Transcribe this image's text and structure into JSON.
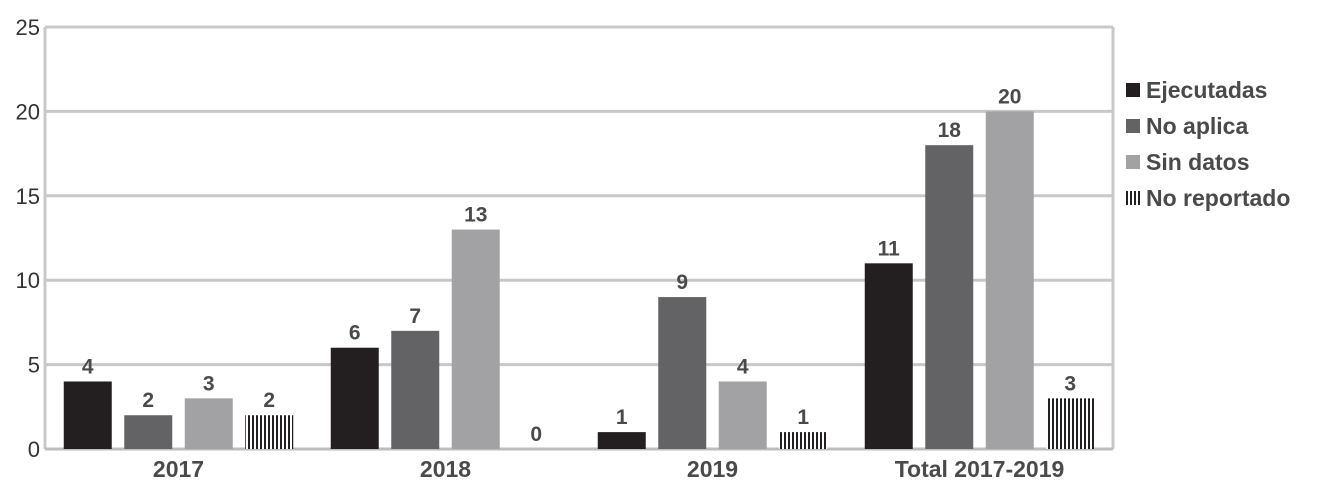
{
  "chart_data": {
    "type": "bar",
    "categories": [
      "2017",
      "2018",
      "2019",
      "Total 2017-2019"
    ],
    "series": [
      {
        "name": "Ejecutadas",
        "values": [
          4,
          6,
          1,
          11
        ],
        "color": "#231f20",
        "pattern": "solid"
      },
      {
        "name": "No aplica",
        "values": [
          2,
          7,
          9,
          18
        ],
        "color": "#636365",
        "pattern": "solid"
      },
      {
        "name": "Sin datos",
        "values": [
          3,
          13,
          4,
          20
        ],
        "color": "#a2a2a5",
        "pattern": "solid"
      },
      {
        "name": "No reportado",
        "values": [
          2,
          0,
          1,
          3
        ],
        "color": "#231f20",
        "pattern": "vertical-stripes"
      }
    ],
    "y_ticks": [
      "0",
      "5",
      "10",
      "15",
      "20",
      "25"
    ],
    "ylim": [
      0,
      25
    ],
    "grid": true,
    "legend_position": "right",
    "title": "",
    "xlabel": "",
    "ylabel": ""
  }
}
